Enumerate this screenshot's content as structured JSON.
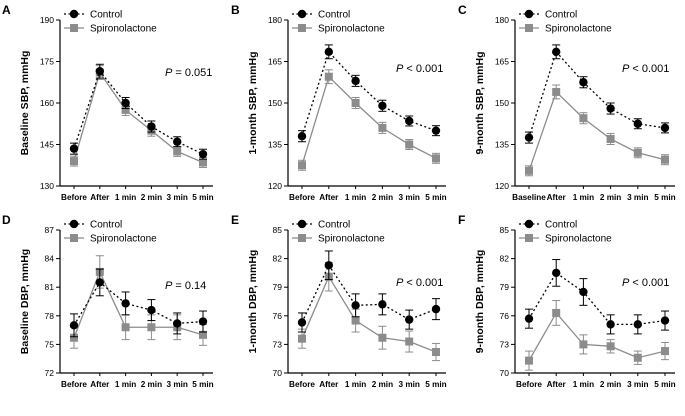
{
  "colors": {
    "control": "#000000",
    "spironolactone": "#8c8c8c",
    "axis": "#000000"
  },
  "legend": {
    "control": "Control",
    "spironolactone": "Spironolactone"
  },
  "chart_data": [
    {
      "id": "A",
      "type": "line",
      "ylabel": "Baseline SBP, mmHg",
      "ylim": [
        130,
        190
      ],
      "yticks": [
        130,
        145,
        160,
        175,
        190
      ],
      "categories": [
        "Before",
        "After",
        "1 min",
        "2 min",
        "3 min",
        "5 min"
      ],
      "pvalue": {
        "prefix": "P",
        "text": " = 0.051"
      },
      "series": [
        {
          "name": "Control",
          "values": [
            143.5,
            171.5,
            160,
            151.5,
            146,
            141.5
          ],
          "errors": [
            2,
            2.5,
            2,
            2,
            1.8,
            1.8
          ]
        },
        {
          "name": "Spironolactone",
          "values": [
            139,
            171,
            157.5,
            150,
            142.5,
            138.5
          ],
          "errors": [
            1.8,
            2.5,
            2,
            2,
            1.8,
            1.8
          ]
        }
      ]
    },
    {
      "id": "B",
      "type": "line",
      "ylabel": "1-month SBP, mmHg",
      "ylim": [
        120,
        180
      ],
      "yticks": [
        120,
        135,
        150,
        165,
        180
      ],
      "categories": [
        "Before",
        "After",
        "1 min",
        "2 min",
        "3 min",
        "5 min"
      ],
      "pvalue": {
        "prefix": "P",
        "text": " < 0.001"
      },
      "series": [
        {
          "name": "Control",
          "values": [
            138,
            168.5,
            158,
            149,
            143.5,
            140
          ],
          "errors": [
            2,
            2.5,
            2,
            2,
            1.8,
            1.8
          ]
        },
        {
          "name": "Spironolactone",
          "values": [
            127.5,
            159.5,
            150,
            141,
            135,
            130
          ],
          "errors": [
            1.8,
            2.5,
            2,
            2,
            1.8,
            1.8
          ]
        }
      ]
    },
    {
      "id": "C",
      "type": "line",
      "ylabel": "9-month SBP, mmHg",
      "ylim": [
        120,
        180
      ],
      "yticks": [
        120,
        135,
        150,
        165,
        180
      ],
      "categories": [
        "Baseline",
        "After",
        "1 min",
        "2 min",
        "3 min",
        "5 min"
      ],
      "pvalue": {
        "prefix": "P",
        "text": " < 0.001"
      },
      "series": [
        {
          "name": "Control",
          "values": [
            137.5,
            168.5,
            157.5,
            148,
            142.5,
            141
          ],
          "errors": [
            2,
            2.5,
            2,
            2,
            1.8,
            1.8
          ]
        },
        {
          "name": "Spironolactone",
          "values": [
            125.5,
            154,
            144.5,
            137,
            132,
            129.5
          ],
          "errors": [
            1.8,
            2.5,
            2,
            2,
            1.8,
            1.8
          ]
        }
      ]
    },
    {
      "id": "D",
      "type": "line",
      "ylabel": "Baseline DBP, mmHg",
      "ylim": [
        72,
        87
      ],
      "yticks": [
        72,
        75,
        78,
        81,
        84,
        87
      ],
      "categories": [
        "Before",
        "After",
        "1 min",
        "2 min",
        "3 min",
        "5 min"
      ],
      "pvalue": {
        "prefix": "P",
        "text": " = 0.14"
      },
      "series": [
        {
          "name": "Control",
          "values": [
            77,
            81.5,
            79.3,
            78.6,
            77.2,
            77.4
          ],
          "errors": [
            1.2,
            1.4,
            1.2,
            1.1,
            1.1,
            1.1
          ]
        },
        {
          "name": "Spironolactone",
          "values": [
            75.7,
            82.6,
            76.8,
            76.8,
            76.8,
            76
          ],
          "errors": [
            1.1,
            1.7,
            1.3,
            1.3,
            1.3,
            1.1
          ]
        }
      ]
    },
    {
      "id": "E",
      "type": "line",
      "ylabel": "1-month DBP, mmHg",
      "ylim": [
        70,
        85
      ],
      "yticks": [
        70,
        73,
        76,
        79,
        82,
        85
      ],
      "categories": [
        "Before",
        "After",
        "1 min",
        "2 min",
        "3 min",
        "5 min"
      ],
      "pvalue": {
        "prefix": "P",
        "text": " < 0.001"
      },
      "series": [
        {
          "name": "Control",
          "values": [
            75.3,
            81.3,
            77.1,
            77.2,
            75.6,
            76.7
          ],
          "errors": [
            1,
            1.5,
            1.2,
            1.1,
            1,
            1.1
          ]
        },
        {
          "name": "Spironolactone",
          "values": [
            73.6,
            80.1,
            75.5,
            73.7,
            73.3,
            72.2
          ],
          "errors": [
            1,
            1.5,
            1.2,
            1.2,
            1.1,
            0.9
          ]
        }
      ]
    },
    {
      "id": "F",
      "type": "line",
      "ylabel": "9-month DBP, mmHg",
      "ylim": [
        70,
        85
      ],
      "yticks": [
        70,
        73,
        76,
        79,
        82,
        85
      ],
      "categories": [
        "Before",
        "After",
        "1 min",
        "2 min",
        "3 min",
        "5 min"
      ],
      "pvalue": {
        "prefix": "P",
        "text": " < 0.001"
      },
      "series": [
        {
          "name": "Control",
          "values": [
            75.7,
            80.5,
            78.5,
            75.1,
            75.1,
            75.5
          ],
          "errors": [
            1,
            1.4,
            1.4,
            1,
            1,
            1
          ]
        },
        {
          "name": "Spironolactone",
          "values": [
            71.3,
            76.3,
            73,
            72.8,
            71.6,
            72.3
          ],
          "errors": [
            1,
            1.3,
            1,
            0.7,
            0.7,
            0.9
          ]
        }
      ]
    }
  ]
}
